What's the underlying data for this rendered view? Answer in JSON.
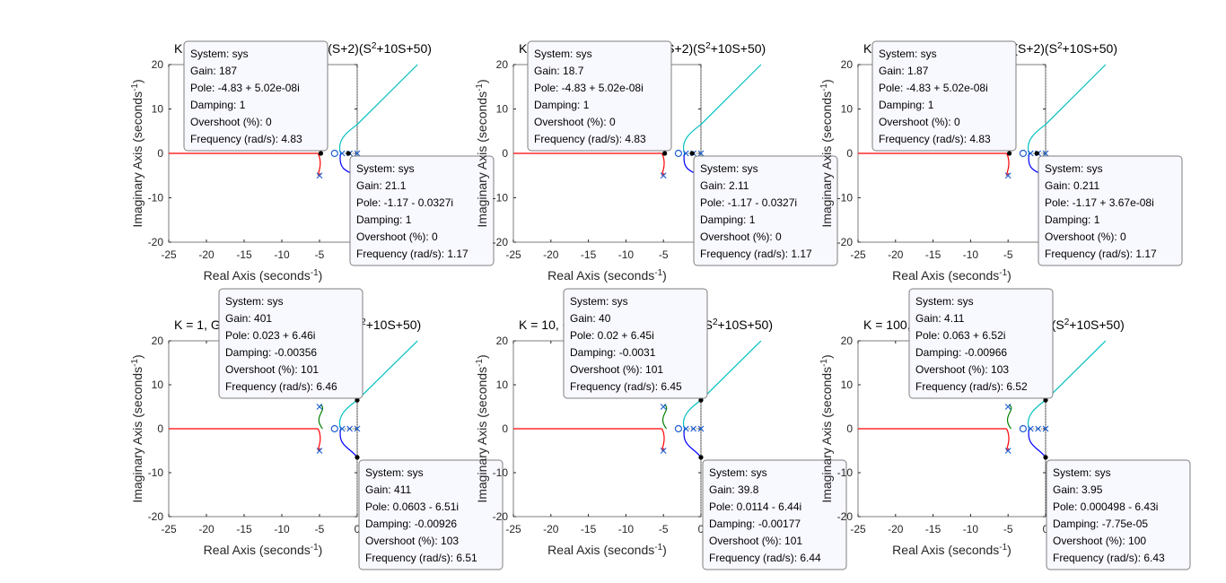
{
  "colors": {
    "red": "#ff0000",
    "green": "#008000",
    "blue": "#0000ff",
    "cyan": "#00bfbf",
    "marker": "#1f5fd0",
    "grid": "#262626",
    "datatip_bg": "#f8f8ff",
    "datatip_border": "#7f7f7f"
  },
  "chart_data": [
    {
      "type": "line",
      "title": "K = 0.1, G = K(S+3)/S(S+1)(S+2)(S²+10S+50)",
      "xlabel": "Real Axis (seconds⁻¹)",
      "ylabel": "Imaginary Axis (seconds⁻¹)",
      "xlim": [
        -25,
        0
      ],
      "ylim": [
        -20,
        20
      ],
      "xticks": [
        "-25",
        "-20",
        "-15",
        "-10",
        "-5",
        "0"
      ],
      "yticks": [
        "-20",
        "-10",
        "0",
        "10",
        "20"
      ],
      "datatips": [
        {
          "lines": [
            "System: sys",
            "Gain: 187",
            "Pole: -4.83 + 5.02e-08i",
            "Damping: 1",
            "Overshoot (%): 0",
            "Frequency (rad/s): 4.83"
          ]
        },
        {
          "lines": [
            "System: sys",
            "Gain: 21.1",
            "Pole: -1.17 - 0.0327i",
            "Damping: 1",
            "Overshoot (%): 0",
            "Frequency (rad/s): 1.17"
          ]
        }
      ]
    },
    {
      "type": "line",
      "title": "K = 1, G = K(S+3)/S(S+1)(S+2)(S²+10S+50)",
      "xlabel": "Real Axis (seconds⁻¹)",
      "ylabel": "Imaginary Axis (seconds⁻¹)",
      "xlim": [
        -25,
        0
      ],
      "ylim": [
        -20,
        20
      ],
      "xticks": [
        "-25",
        "-20",
        "-15",
        "-10",
        "-5",
        "0"
      ],
      "yticks": [
        "-20",
        "-10",
        "0",
        "10",
        "20"
      ],
      "datatips": [
        {
          "lines": [
            "System: sys",
            "Gain: 18.7",
            "Pole: -4.83 + 5.02e-08i",
            "Damping: 1",
            "Overshoot (%): 0",
            "Frequency (rad/s): 4.83"
          ]
        },
        {
          "lines": [
            "System: sys",
            "Gain: 2.11",
            "Pole: -1.17 - 0.0327i",
            "Damping: 1",
            "Overshoot (%): 0",
            "Frequency (rad/s): 1.17"
          ]
        }
      ]
    },
    {
      "type": "line",
      "title": "K = 10, G = K(S+3)/S(S+1)(S+2)(S²+10S+50)",
      "xlabel": "Real Axis (seconds⁻¹)",
      "ylabel": "Imaginary Axis (seconds⁻¹)",
      "xlim": [
        -25,
        0
      ],
      "ylim": [
        -20,
        20
      ],
      "xticks": [
        "-25",
        "-20",
        "-15",
        "-10",
        "-5",
        "0"
      ],
      "yticks": [
        "-20",
        "-10",
        "0",
        "10",
        "20"
      ],
      "datatips": [
        {
          "lines": [
            "System: sys",
            "Gain: 1.87",
            "Pole: -4.83 + 5.02e-08i",
            "Damping: 1",
            "Overshoot (%): 0",
            "Frequency (rad/s): 4.83"
          ]
        },
        {
          "lines": [
            "System: sys",
            "Gain: 0.211",
            "Pole: -1.17 + 3.67e-08i",
            "Damping: 1",
            "Overshoot (%): 0",
            "Frequency (rad/s): 1.17"
          ]
        }
      ]
    },
    {
      "type": "line",
      "title": "K = 1, G = K(S+3)/S(S+1)(S+5)(S²+10S+50)",
      "xlabel": "Real Axis (seconds⁻¹)",
      "ylabel": "Imaginary Axis (seconds⁻¹)",
      "xlim": [
        -25,
        0
      ],
      "ylim": [
        -20,
        20
      ],
      "xticks": [
        "-25",
        "-20",
        "-15",
        "-10",
        "-5",
        "0"
      ],
      "yticks": [
        "-20",
        "-10",
        "0",
        "10",
        "20"
      ],
      "datatips": [
        {
          "lines": [
            "System: sys",
            "Gain: 401",
            "Pole: 0.023 + 6.46i",
            "Damping: -0.00356",
            "Overshoot (%): 101",
            "Frequency (rad/s): 6.46"
          ]
        },
        {
          "lines": [
            "System: sys",
            "Gain: 411",
            "Pole: 0.0603 - 6.51i",
            "Damping: -0.00926",
            "Overshoot (%): 103",
            "Frequency (rad/s): 6.51"
          ]
        }
      ]
    },
    {
      "type": "line",
      "title": "K = 10, G = K(S+3)/S(S+1)(S+5)(S²+10S+50)",
      "xlabel": "Real Axis (seconds⁻¹)",
      "ylabel": "Imaginary Axis (seconds⁻¹)",
      "xlim": [
        -25,
        0
      ],
      "ylim": [
        -20,
        20
      ],
      "xticks": [
        "-25",
        "-20",
        "-15",
        "-10",
        "-5",
        "0"
      ],
      "yticks": [
        "-20",
        "-10",
        "0",
        "10",
        "20"
      ],
      "datatips": [
        {
          "lines": [
            "System: sys",
            "Gain: 40",
            "Pole: 0.02 + 6.45i",
            "Damping: -0.0031",
            "Overshoot (%): 101",
            "Frequency (rad/s): 6.45"
          ]
        },
        {
          "lines": [
            "System: sys",
            "Gain: 39.8",
            "Pole: 0.0114 - 6.44i",
            "Damping: -0.00177",
            "Overshoot (%): 101",
            "Frequency (rad/s): 6.44"
          ]
        }
      ]
    },
    {
      "type": "line",
      "title": "K = 100, G = K(S+3)/S(S+1)(S+5)(S²+10S+50)",
      "xlabel": "Real Axis (seconds⁻¹)",
      "ylabel": "Imaginary Axis (seconds⁻¹)",
      "xlim": [
        -25,
        0
      ],
      "ylim": [
        -20,
        20
      ],
      "xticks": [
        "-25",
        "-20",
        "-15",
        "-10",
        "-5",
        "0"
      ],
      "yticks": [
        "-20",
        "-10",
        "0",
        "10",
        "20"
      ],
      "datatips": [
        {
          "lines": [
            "System: sys",
            "Gain: 4.11",
            "Pole: 0.063 + 6.52i",
            "Damping: -0.00966",
            "Overshoot (%): 103",
            "Frequency (rad/s): 6.52"
          ]
        },
        {
          "lines": [
            "System: sys",
            "Gain: 3.95",
            "Pole: 0.000498 - 6.43i",
            "Damping: -7.75e-05",
            "Overshoot (%): 100",
            "Frequency (rad/s): 6.43"
          ]
        }
      ]
    }
  ]
}
